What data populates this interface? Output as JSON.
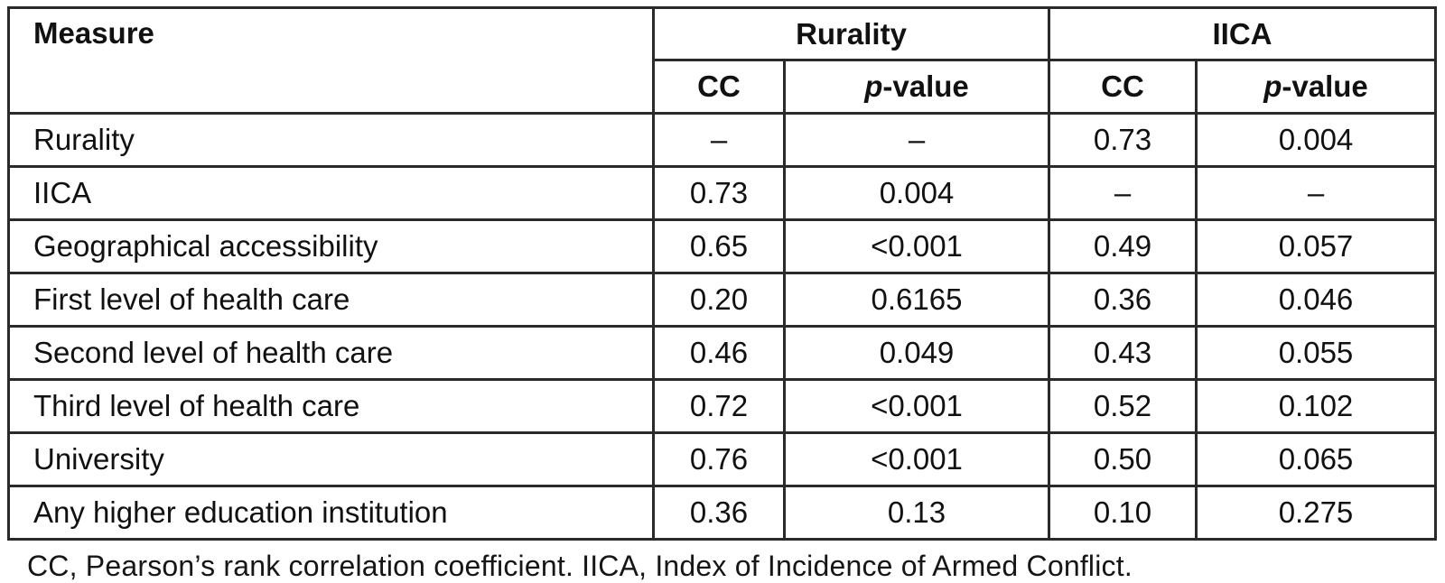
{
  "table": {
    "measure_header": "Measure",
    "groups": [
      "Rurality",
      "IICA"
    ],
    "sub": {
      "cc": "CC",
      "p_italic": "p",
      "p_rest": "-value"
    },
    "rows": [
      {
        "measure": "Rurality",
        "values": [
          "–",
          "–",
          "0.73",
          "0.004"
        ]
      },
      {
        "measure": "IICA",
        "values": [
          "0.73",
          "0.004",
          "–",
          "–"
        ]
      },
      {
        "measure": "Geographical accessibility",
        "values": [
          "0.65",
          "<0.001",
          "0.49",
          "0.057"
        ]
      },
      {
        "measure": "First level of health care",
        "values": [
          "0.20",
          "0.6165",
          "0.36",
          "0.046"
        ]
      },
      {
        "measure": "Second level of health care",
        "values": [
          "0.46",
          "0.049",
          "0.43",
          "0.055"
        ]
      },
      {
        "measure": "Third level of health care",
        "values": [
          "0.72",
          "<0.001",
          "0.52",
          "0.102"
        ]
      },
      {
        "measure": "University",
        "values": [
          "0.76",
          "<0.001",
          "0.50",
          "0.065"
        ]
      },
      {
        "measure": "Any higher education institution",
        "values": [
          "0.36",
          "0.13",
          "0.10",
          "0.275"
        ]
      }
    ],
    "footnote": "CC, Pearson’s rank correlation coefficient. IICA, Index of Incidence of Armed Conflict.",
    "colors": {
      "border": "#2a2a2a",
      "text": "#111111",
      "background": "#ffffff"
    }
  }
}
